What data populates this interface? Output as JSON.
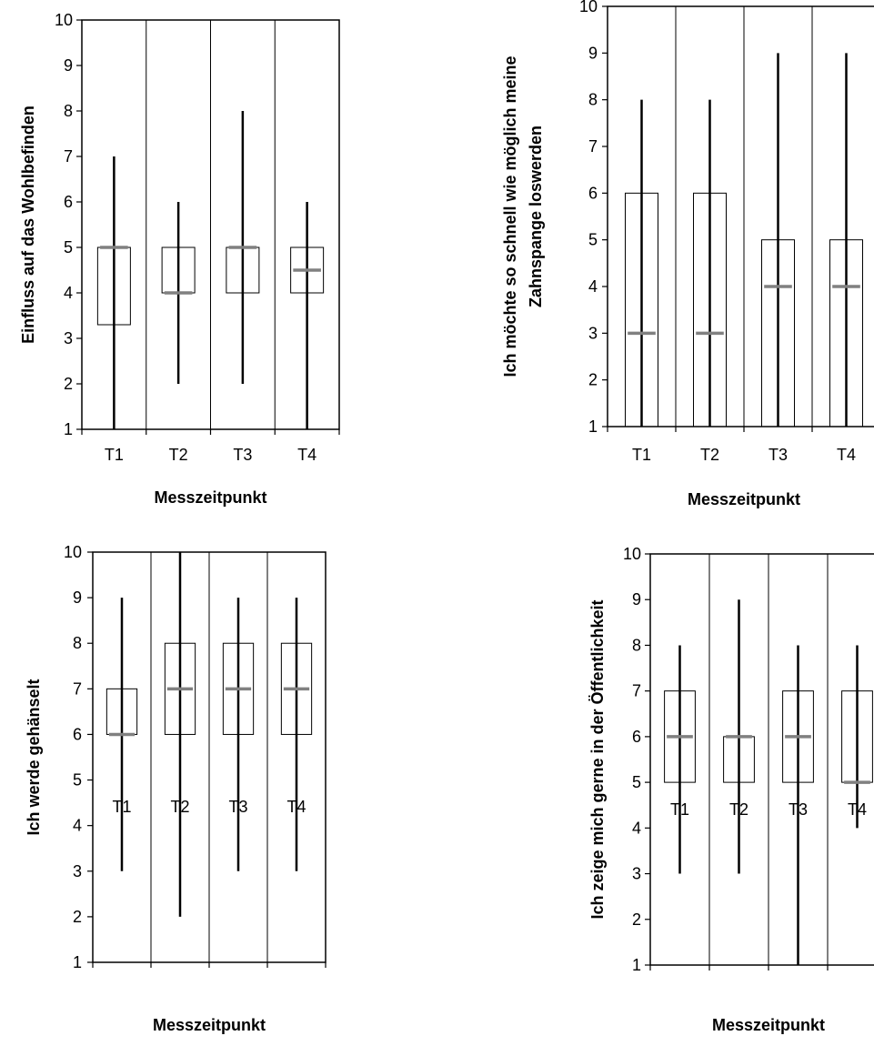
{
  "colors": {
    "frame": "#000000",
    "whisker": "#000000",
    "box_edge": "#000000",
    "median": "#808080",
    "background": "#ffffff"
  },
  "chart_data": [
    {
      "type": "box",
      "xlabel": "Messzeitpunkt",
      "ylabel_lines": [
        "Einfluss auf das Wohlbefinden"
      ],
      "ylim": [
        1,
        10
      ],
      "yticks": [
        "1",
        "2",
        "3",
        "4",
        "5",
        "6",
        "7",
        "8",
        "9",
        "10"
      ],
      "categories": [
        "T1",
        "T2",
        "T3",
        "T4"
      ],
      "grid": "vertical category separators",
      "boxes": [
        {
          "min": 1,
          "q1": 3.3,
          "median": 5,
          "q3": 5,
          "max": 7
        },
        {
          "min": 2,
          "q1": 4,
          "median": 4,
          "q3": 5,
          "max": 6
        },
        {
          "min": 2,
          "q1": 4,
          "median": 5,
          "q3": 5,
          "max": 8
        },
        {
          "min": 1,
          "q1": 4,
          "median": 4.5,
          "q3": 5,
          "max": 6
        }
      ]
    },
    {
      "type": "box",
      "xlabel": "Messzeitpunkt",
      "ylabel_lines": [
        "Ich möchte so schnell wie möglich meine",
        "Zahnspange loswerden"
      ],
      "ylim": [
        1,
        10
      ],
      "yticks": [
        "1",
        "2",
        "3",
        "4",
        "5",
        "6",
        "7",
        "8",
        "9",
        "10"
      ],
      "categories": [
        "T1",
        "T2",
        "T3",
        "T4"
      ],
      "grid": "vertical category separators",
      "boxes": [
        {
          "min": 1,
          "q1": 1,
          "median": 3,
          "q3": 6,
          "max": 8
        },
        {
          "min": 1,
          "q1": 1,
          "median": 3,
          "q3": 6,
          "max": 8
        },
        {
          "min": 1,
          "q1": 1,
          "median": 4,
          "q3": 5,
          "max": 9
        },
        {
          "min": 1,
          "q1": 1,
          "median": 4,
          "q3": 5,
          "max": 9
        }
      ]
    },
    {
      "type": "box",
      "xlabel": "Messzeitpunkt",
      "ylabel_lines": [
        "Ich werde gehänselt"
      ],
      "ylim": [
        1,
        10
      ],
      "yticks": [
        "1",
        "2",
        "3",
        "4",
        "5",
        "6",
        "7",
        "8",
        "9",
        "10"
      ],
      "categories": [
        "T1",
        "T2",
        "T3",
        "T4"
      ],
      "grid": "vertical category separators",
      "boxes": [
        {
          "min": 3,
          "q1": 6,
          "median": 6,
          "q3": 7,
          "max": 9
        },
        {
          "min": 2,
          "q1": 6,
          "median": 7,
          "q3": 8,
          "max": 10
        },
        {
          "min": 3,
          "q1": 6,
          "median": 7,
          "q3": 8,
          "max": 9
        },
        {
          "min": 3,
          "q1": 6,
          "median": 7,
          "q3": 8,
          "max": 9
        }
      ]
    },
    {
      "type": "box",
      "xlabel": "Messzeitpunkt",
      "ylabel_lines": [
        "Ich zeige mich gerne in der Öffentlichkeit"
      ],
      "ylim": [
        1,
        10
      ],
      "yticks": [
        "1",
        "2",
        "3",
        "4",
        "5",
        "6",
        "7",
        "8",
        "9",
        "10"
      ],
      "categories": [
        "T1",
        "T2",
        "T3",
        "T4"
      ],
      "grid": "vertical category separators",
      "boxes": [
        {
          "min": 3,
          "q1": 5,
          "median": 6,
          "q3": 7,
          "max": 8
        },
        {
          "min": 3,
          "q1": 5,
          "median": 6,
          "q3": 6,
          "max": 9
        },
        {
          "min": 1,
          "q1": 5,
          "median": 6,
          "q3": 7,
          "max": 8
        },
        {
          "min": 4,
          "q1": 5,
          "median": 5,
          "q3": 7,
          "max": 8
        }
      ]
    }
  ]
}
